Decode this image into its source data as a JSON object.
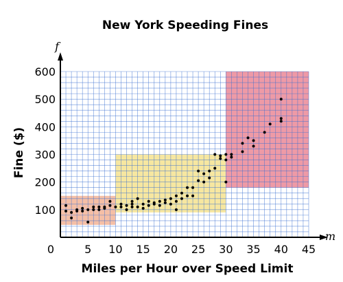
{
  "chart_data": {
    "type": "scatter",
    "title": "New York Speeding Fines",
    "xlabel": "Miles per Hour over Speed Limit",
    "ylabel": "Fine ($)",
    "x_var": "m",
    "y_var": "f",
    "origin_label": "0",
    "xlim": [
      0,
      45
    ],
    "ylim": [
      0,
      600
    ],
    "x_ticks": [
      5,
      10,
      15,
      20,
      25,
      30,
      35,
      40,
      45
    ],
    "y_ticks": [
      100,
      200,
      300,
      400,
      500,
      600
    ],
    "grid": true,
    "grid_step_x": 1,
    "grid_step_y": 20,
    "grid_color": "#3a6fd0",
    "regions": [
      {
        "x_range": [
          0,
          10
        ],
        "y_range": [
          45,
          150
        ],
        "color": "#f5bfa6"
      },
      {
        "x_range": [
          10,
          30
        ],
        "y_range": [
          90,
          300
        ],
        "color": "#f7e7a0"
      },
      {
        "x_range": [
          30,
          45
        ],
        "y_range": [
          180,
          600
        ],
        "color": "#ee9aa6"
      }
    ],
    "points": [
      [
        1,
        95
      ],
      [
        1,
        115
      ],
      [
        2,
        70
      ],
      [
        2,
        90
      ],
      [
        3,
        95
      ],
      [
        3,
        100
      ],
      [
        4,
        105
      ],
      [
        4,
        95
      ],
      [
        5,
        100
      ],
      [
        5,
        55
      ],
      [
        6,
        110
      ],
      [
        6,
        100
      ],
      [
        7,
        110
      ],
      [
        7,
        100
      ],
      [
        8,
        105
      ],
      [
        8,
        110
      ],
      [
        9,
        130
      ],
      [
        9,
        115
      ],
      [
        10,
        110
      ],
      [
        11,
        110
      ],
      [
        11,
        120
      ],
      [
        12,
        115
      ],
      [
        12,
        100
      ],
      [
        13,
        120
      ],
      [
        13,
        130
      ],
      [
        13,
        110
      ],
      [
        14,
        140
      ],
      [
        14,
        110
      ],
      [
        15,
        120
      ],
      [
        15,
        105
      ],
      [
        16,
        115
      ],
      [
        16,
        130
      ],
      [
        17,
        125
      ],
      [
        17,
        120
      ],
      [
        18,
        130
      ],
      [
        18,
        115
      ],
      [
        19,
        125
      ],
      [
        19,
        135
      ],
      [
        20,
        120
      ],
      [
        20,
        140
      ],
      [
        21,
        150
      ],
      [
        21,
        100
      ],
      [
        21,
        130
      ],
      [
        22,
        160
      ],
      [
        22,
        140
      ],
      [
        23,
        180
      ],
      [
        23,
        150
      ],
      [
        24,
        180
      ],
      [
        24,
        150
      ],
      [
        25,
        205
      ],
      [
        25,
        240
      ],
      [
        26,
        200
      ],
      [
        26,
        230
      ],
      [
        27,
        240
      ],
      [
        27,
        215
      ],
      [
        28,
        300
      ],
      [
        28,
        250
      ],
      [
        29,
        295
      ],
      [
        29,
        285
      ],
      [
        30,
        280
      ],
      [
        30,
        200
      ],
      [
        30,
        300
      ],
      [
        31,
        300
      ],
      [
        31,
        290
      ],
      [
        33,
        340
      ],
      [
        33,
        310
      ],
      [
        34,
        360
      ],
      [
        35,
        350
      ],
      [
        35,
        330
      ],
      [
        37,
        380
      ],
      [
        38,
        410
      ],
      [
        40,
        500
      ],
      [
        40,
        430
      ],
      [
        40,
        420
      ]
    ]
  }
}
